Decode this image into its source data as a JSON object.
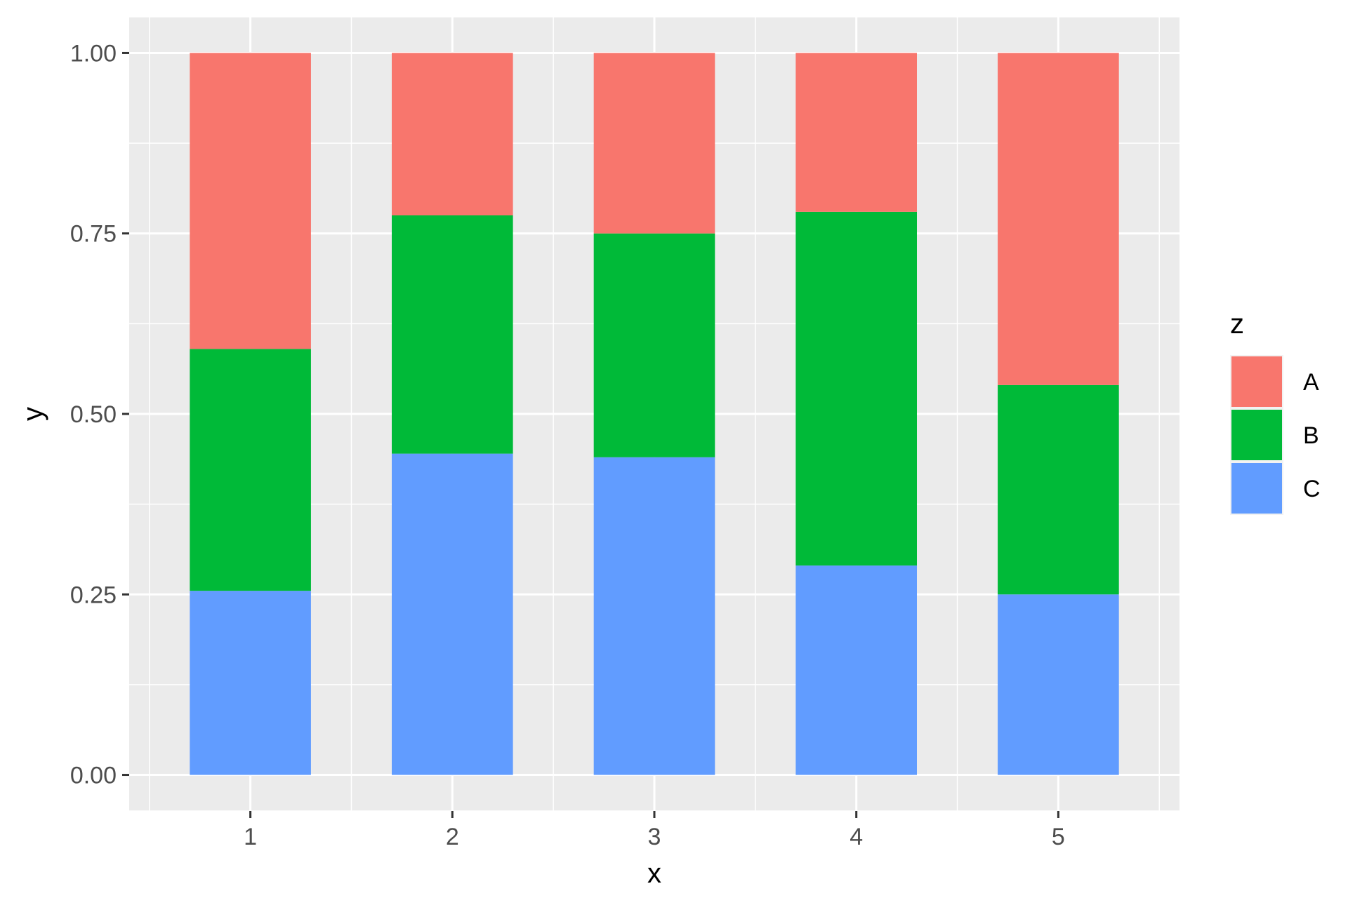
{
  "chart_data": {
    "type": "bar",
    "stacked": true,
    "categories": [
      "1",
      "2",
      "3",
      "4",
      "5"
    ],
    "series": [
      {
        "name": "A",
        "color": "#F8766D",
        "values": [
          0.41,
          0.225,
          0.25,
          0.22,
          0.46
        ]
      },
      {
        "name": "B",
        "color": "#00BA38",
        "values": [
          0.335,
          0.33,
          0.31,
          0.49,
          0.29
        ]
      },
      {
        "name": "C",
        "color": "#619CFF",
        "values": [
          0.255,
          0.445,
          0.44,
          0.29,
          0.25
        ]
      }
    ],
    "xlabel": "x",
    "ylabel": "y",
    "ylim": [
      -0.05,
      1.05
    ],
    "yticks": [
      0.0,
      0.25,
      0.5,
      0.75,
      1.0
    ],
    "ytick_labels": [
      "0.00",
      "0.25",
      "0.50",
      "0.75",
      "1.00"
    ],
    "legend": {
      "title": "z",
      "position": "right"
    },
    "grid": true,
    "panel_background": "#EBEBEB"
  }
}
